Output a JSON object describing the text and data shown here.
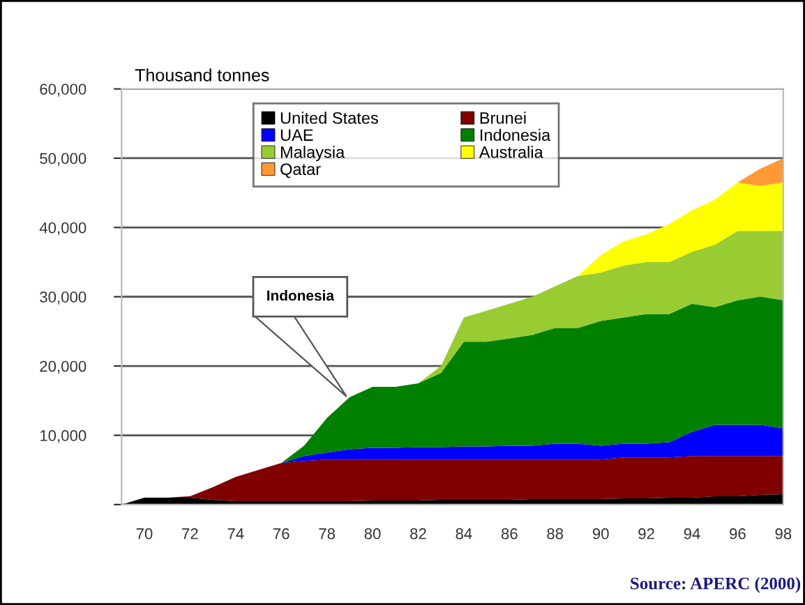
{
  "chart_data": {
    "type": "area",
    "stacked": true,
    "ylabel": "Thousand tonnes",
    "x": [
      69,
      70,
      71,
      72,
      73,
      74,
      75,
      76,
      77,
      78,
      79,
      80,
      81,
      82,
      83,
      84,
      85,
      86,
      87,
      88,
      89,
      90,
      91,
      92,
      93,
      94,
      95,
      96,
      97,
      98
    ],
    "series": [
      {
        "name": "United States",
        "color": "#000000",
        "values": [
          0,
          1000,
          1000,
          1000,
          700,
          500,
          500,
          500,
          500,
          500,
          500,
          600,
          600,
          600,
          700,
          700,
          700,
          700,
          800,
          800,
          800,
          800,
          900,
          900,
          1000,
          1000,
          1200,
          1200,
          1400,
          1500
        ]
      },
      {
        "name": "Brunei",
        "color": "#800000",
        "values": [
          0,
          0,
          0,
          200,
          1800,
          3500,
          4500,
          5500,
          5800,
          6000,
          6000,
          5900,
          5900,
          5900,
          5800,
          5800,
          5800,
          5800,
          5700,
          5700,
          5700,
          5700,
          5900,
          5900,
          5800,
          6000,
          5800,
          5800,
          5600,
          5500
        ]
      },
      {
        "name": "UAE",
        "color": "#0000ff",
        "values": [
          0,
          0,
          0,
          0,
          0,
          0,
          0,
          0,
          700,
          1000,
          1500,
          1700,
          1700,
          1800,
          1800,
          1900,
          1900,
          2000,
          2000,
          2300,
          2300,
          2000,
          2000,
          2000,
          2200,
          3500,
          4500,
          4500,
          4500,
          4000
        ]
      },
      {
        "name": "Indonesia",
        "color": "#008000",
        "values": [
          0,
          0,
          0,
          0,
          0,
          0,
          0,
          0,
          1500,
          5000,
          7500,
          8800,
          8800,
          9200,
          10700,
          15100,
          15100,
          15500,
          16000,
          16700,
          16700,
          18000,
          18200,
          18700,
          18500,
          18500,
          17000,
          18000,
          18500,
          18500
        ]
      },
      {
        "name": "Malaysia",
        "color": "#99cc33",
        "values": [
          0,
          0,
          0,
          0,
          0,
          0,
          0,
          0,
          0,
          0,
          0,
          0,
          0,
          0,
          1000,
          3500,
          4500,
          5000,
          5500,
          6000,
          7500,
          7000,
          7500,
          7500,
          7500,
          7500,
          9000,
          10000,
          9500,
          10000
        ]
      },
      {
        "name": "Australia",
        "color": "#ffff00",
        "values": [
          0,
          0,
          0,
          0,
          0,
          0,
          0,
          0,
          0,
          0,
          0,
          0,
          0,
          0,
          0,
          0,
          0,
          0,
          0,
          0,
          0,
          2500,
          3500,
          4000,
          5500,
          6000,
          6500,
          7000,
          6500,
          7000
        ]
      },
      {
        "name": "Qatar",
        "color": "#ff9933",
        "values": [
          0,
          0,
          0,
          0,
          0,
          0,
          0,
          0,
          0,
          0,
          0,
          0,
          0,
          0,
          0,
          0,
          0,
          0,
          0,
          0,
          0,
          0,
          0,
          0,
          0,
          0,
          0,
          0,
          2500,
          3500
        ]
      }
    ],
    "xlim": [
      69,
      98
    ],
    "xticks": [
      {
        "value": 70,
        "label": "70"
      },
      {
        "value": 72,
        "label": "72"
      },
      {
        "value": 74,
        "label": "74"
      },
      {
        "value": 76,
        "label": "76"
      },
      {
        "value": 78,
        "label": "78"
      },
      {
        "value": 80,
        "label": "80"
      },
      {
        "value": 82,
        "label": "82"
      },
      {
        "value": 84,
        "label": "84"
      },
      {
        "value": 86,
        "label": "86"
      },
      {
        "value": 88,
        "label": "88"
      },
      {
        "value": 90,
        "label": "90"
      },
      {
        "value": 92,
        "label": "92"
      },
      {
        "value": 94,
        "label": "94"
      },
      {
        "value": 96,
        "label": "96"
      },
      {
        "value": 98,
        "label": "98"
      }
    ],
    "ylim": [
      0,
      60000
    ],
    "yticks": [
      {
        "value": 0,
        "label": null
      },
      {
        "value": 10000,
        "label": "10,000"
      },
      {
        "value": 20000,
        "label": "20,000"
      },
      {
        "value": 30000,
        "label": "30,000"
      },
      {
        "value": 40000,
        "label": "40,000"
      },
      {
        "value": 50000,
        "label": "50,000"
      },
      {
        "value": 60000,
        "label": "60,000"
      }
    ],
    "grid": "y",
    "legend": "top",
    "annotations": [
      "Indonesia",
      "Source: APERC (2000)"
    ]
  }
}
